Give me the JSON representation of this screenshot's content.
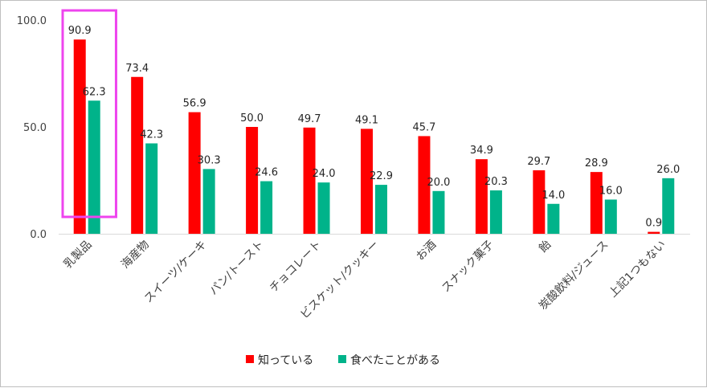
{
  "chart_data": {
    "type": "bar",
    "categories": [
      "乳製品",
      "海産物",
      "スイーツ/ケーキ",
      "パン/トースト",
      "チョコレート",
      "ビスケット/クッキー",
      "お酒",
      "スナック菓子",
      "飴",
      "炭酸飲料/ジュース",
      "上記1つもない"
    ],
    "series": [
      {
        "name": "知っている",
        "color": "#ff0000",
        "values": [
          90.9,
          73.4,
          56.9,
          50.0,
          49.7,
          49.1,
          45.7,
          34.9,
          29.7,
          28.9,
          0.9
        ]
      },
      {
        "name": "食べたことがある",
        "color": "#00b38a",
        "values": [
          62.3,
          42.3,
          30.3,
          24.6,
          24.0,
          22.9,
          20.0,
          20.3,
          14.0,
          16.0,
          26.0
        ]
      }
    ],
    "y_ticks": [
      "0.0",
      "50.0",
      "100.0"
    ],
    "ylim": [
      0,
      100
    ],
    "legend_position": "bottom",
    "grid": false,
    "highlight_category": "乳製品",
    "highlight_color": "#ee44ee"
  }
}
